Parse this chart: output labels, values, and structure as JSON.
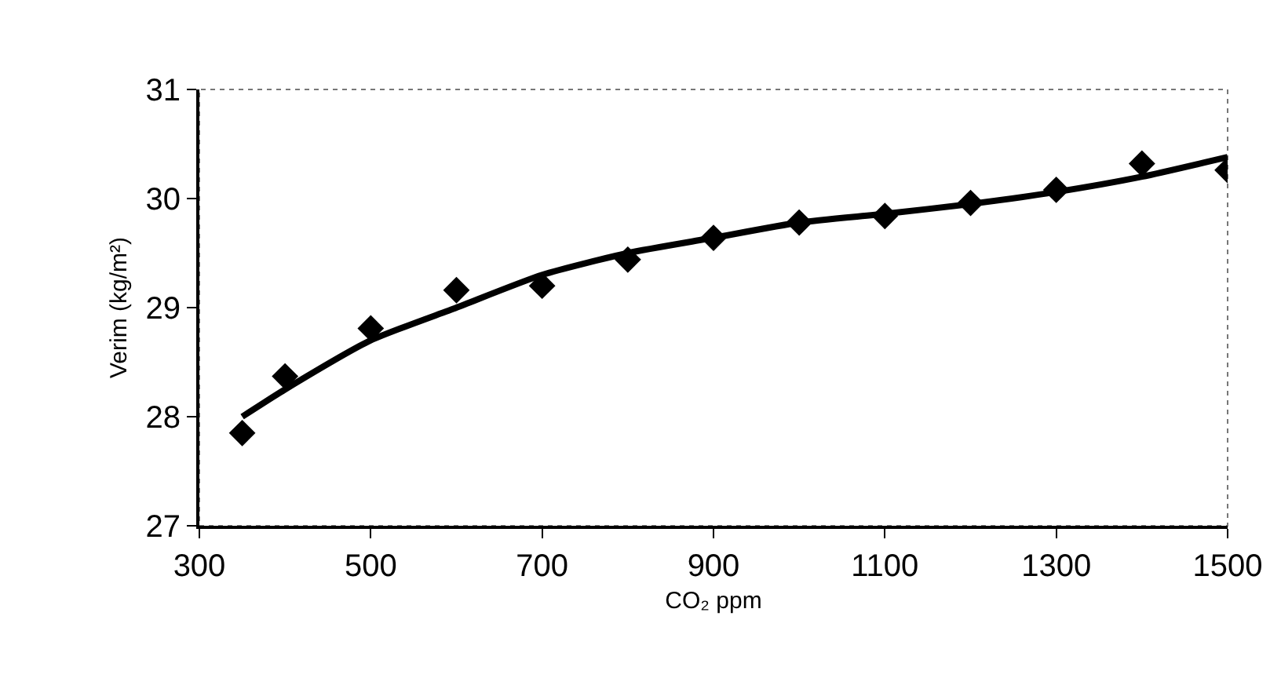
{
  "chart_data": {
    "type": "scatter",
    "xlabel": "CO₂ ppm",
    "ylabel": "Verim (kg/m²)",
    "x": [
      350,
      400,
      500,
      600,
      700,
      800,
      900,
      1000,
      1100,
      1200,
      1300,
      1400,
      1500
    ],
    "series": [
      {
        "color": "#000000",
        "marker": "diamond",
        "values": [
          27.85,
          28.37,
          28.81,
          29.16,
          29.2,
          29.44,
          29.64,
          29.78,
          29.84,
          29.96,
          30.08,
          30.32,
          30.26
        ]
      },
      {
        "type": "line",
        "color": "#000000",
        "marker": "none",
        "line_style": "solid",
        "values": [
          28.0,
          28.25,
          28.7,
          29.0,
          29.3,
          29.5,
          29.64,
          29.78,
          29.86,
          29.95,
          30.06,
          30.2,
          30.38
        ]
      }
    ],
    "xlim": [
      300,
      1500
    ],
    "xticks": [
      300,
      500,
      700,
      900,
      1100,
      1300,
      1500
    ],
    "ylim": [
      27,
      31
    ],
    "yticks": [
      27,
      28,
      29,
      30,
      31
    ],
    "grid": false
  }
}
